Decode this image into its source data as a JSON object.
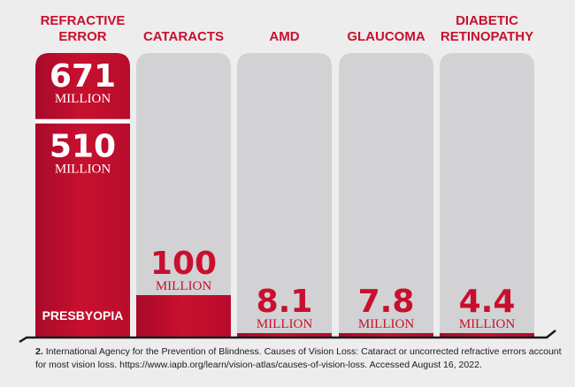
{
  "chart_data": {
    "type": "bar",
    "categories": [
      "REFRACTIVE ERROR",
      "CATARACTS",
      "AMD",
      "GLAUCOMA",
      "DIABETIC RETINOPATHY"
    ],
    "values": [
      671,
      100,
      8.1,
      7.8,
      4.4
    ],
    "value_labels": [
      "671",
      "100",
      "8.1",
      "7.8",
      "4.4"
    ],
    "unit_label": "MILLION",
    "sub_segment": {
      "category": "REFRACTIVE ERROR",
      "name": "PRESBYOPIA",
      "value": 510,
      "value_label": "510"
    },
    "ylim": [
      0,
      671
    ],
    "grid": false,
    "legend": "none"
  },
  "colors": {
    "accent": "#c8102e",
    "accent_dark": "#b0072a",
    "track": "#d2d2d4",
    "background": "#ededed"
  },
  "footnote": {
    "number": "2.",
    "text": "International Agency for the Prevention of Blindness. Causes of Vision Loss: Cataract or uncorrected refractive errors account for most vision loss. https://www.iapb.org/learn/vision-atlas/causes-of-vision-loss. Accessed August 16, 2022."
  }
}
